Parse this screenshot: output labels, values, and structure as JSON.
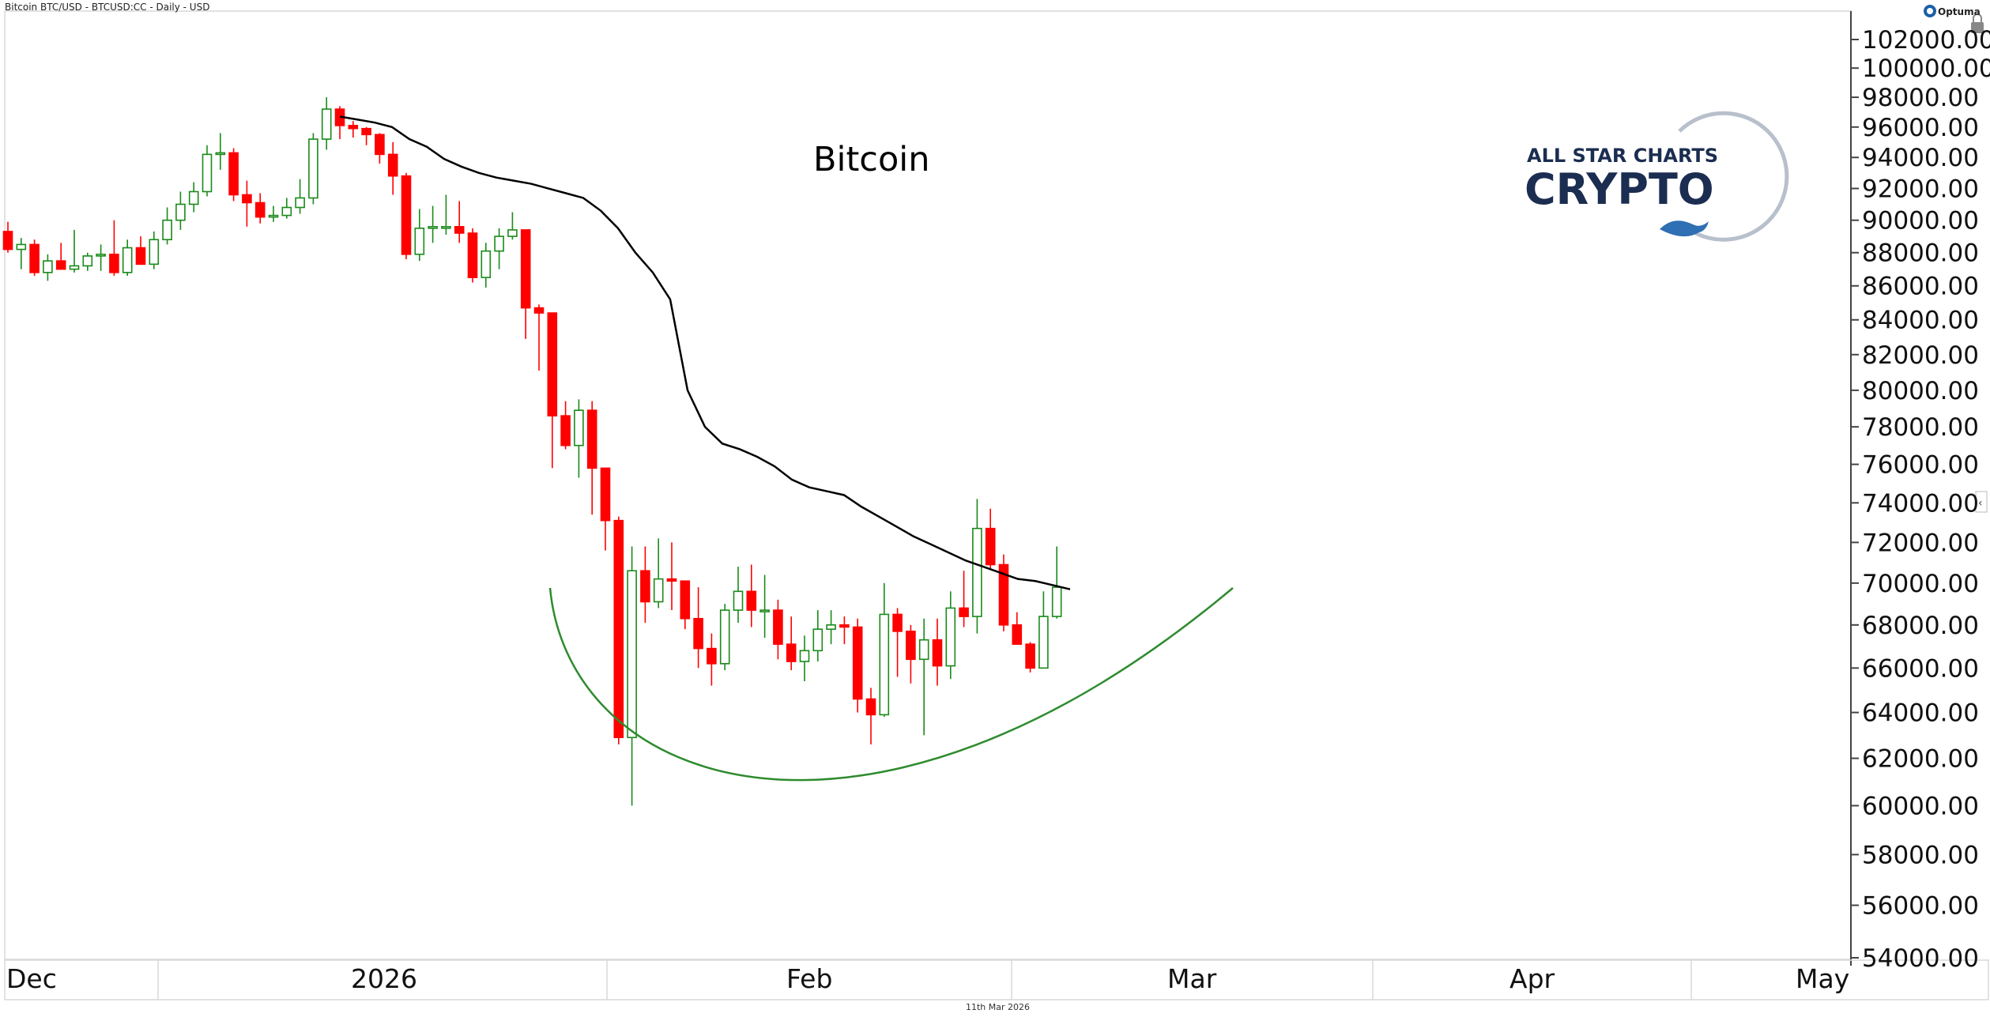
{
  "header": {
    "instrument": "Bitcoin BTC/USD - BTCUSD:CC - Daily - USD",
    "brand": "Optuma"
  },
  "footer": {
    "date": "11th Mar 2026"
  },
  "logo": {
    "line1": "ALL STAR CHARTS",
    "line2": "CRYPTO"
  },
  "colors": {
    "up": "#1a8a1a",
    "down": "#ff0000",
    "ma": "#000000",
    "arc": "#2e8b2e",
    "logo": "#1b2d50"
  },
  "chart_data": {
    "type": "candlestick",
    "title": "Bitcoin",
    "y_scale": "log",
    "ylim": [
      54000,
      102000
    ],
    "y_ticks": [
      "54000.00",
      "56000.00",
      "58000.00",
      "60000.00",
      "62000.00",
      "64000.00",
      "66000.00",
      "68000.00",
      "70000.00",
      "72000.00",
      "74000.00",
      "76000.00",
      "78000.00",
      "80000.00",
      "82000.00",
      "84000.00",
      "86000.00",
      "88000.00",
      "90000.00",
      "92000.00",
      "94000.00",
      "96000.00",
      "98000.00",
      "100000.00",
      "102000.00"
    ],
    "x_labels": [
      "Dec",
      "2026",
      "Feb",
      "Mar",
      "Apr",
      "May"
    ],
    "candles": [
      [
        89300,
        89900,
        88000,
        88200
      ],
      [
        88200,
        88900,
        87000,
        88500
      ],
      [
        88500,
        88800,
        86600,
        86800
      ],
      [
        86800,
        87900,
        86300,
        87500
      ],
      [
        87500,
        88600,
        87000,
        87000
      ],
      [
        87000,
        89400,
        86800,
        87200
      ],
      [
        87200,
        88000,
        86900,
        87800
      ],
      [
        87800,
        88500,
        86900,
        87900
      ],
      [
        87900,
        90000,
        86600,
        86800
      ],
      [
        86800,
        88800,
        86600,
        88300
      ],
      [
        88300,
        89000,
        87500,
        87300
      ],
      [
        87300,
        89300,
        87000,
        88800
      ],
      [
        88800,
        90800,
        88500,
        90000
      ],
      [
        90000,
        91800,
        89400,
        91000
      ],
      [
        91000,
        92400,
        90500,
        91800
      ],
      [
        91800,
        94800,
        91500,
        94200
      ],
      [
        94200,
        95600,
        93200,
        94300
      ],
      [
        94300,
        94600,
        91200,
        91600
      ],
      [
        91600,
        92500,
        89600,
        91100
      ],
      [
        91100,
        91700,
        89800,
        90200
      ],
      [
        90200,
        90900,
        89900,
        90300
      ],
      [
        90300,
        91400,
        90100,
        90800
      ],
      [
        90800,
        92600,
        90400,
        91400
      ],
      [
        91400,
        95600,
        91000,
        95200
      ],
      [
        95200,
        98000,
        94500,
        97200
      ],
      [
        97200,
        97400,
        95200,
        96100
      ],
      [
        96100,
        96400,
        95300,
        95900
      ],
      [
        95900,
        96000,
        94800,
        95500
      ],
      [
        95500,
        95600,
        93600,
        94200
      ],
      [
        94200,
        95000,
        91600,
        92800
      ],
      [
        92800,
        93000,
        87600,
        87900
      ],
      [
        87900,
        90700,
        87500,
        89500
      ],
      [
        89500,
        90900,
        88600,
        89600
      ],
      [
        89600,
        91600,
        89100,
        89600
      ],
      [
        89600,
        91200,
        88600,
        89200
      ],
      [
        89200,
        89500,
        86200,
        86500
      ],
      [
        86500,
        88600,
        85900,
        88100
      ],
      [
        88100,
        89500,
        87000,
        89000
      ],
      [
        89000,
        90500,
        88800,
        89400
      ],
      [
        89400,
        89400,
        82900,
        84700
      ],
      [
        84700,
        84900,
        81100,
        84400
      ],
      [
        84400,
        84400,
        75800,
        78600
      ],
      [
        78600,
        79400,
        76800,
        77000
      ],
      [
        77000,
        79500,
        75300,
        78900
      ],
      [
        78900,
        79400,
        73400,
        75800
      ],
      [
        75800,
        75800,
        71600,
        73100
      ],
      [
        73100,
        73300,
        62600,
        62900
      ],
      [
        62900,
        71800,
        60000,
        70600
      ],
      [
        70600,
        71800,
        68100,
        69100
      ],
      [
        69100,
        72200,
        68800,
        70200
      ],
      [
        70200,
        72000,
        68700,
        70100
      ],
      [
        70100,
        70100,
        67800,
        68300
      ],
      [
        68300,
        69800,
        66000,
        66900
      ],
      [
        66900,
        67600,
        65200,
        66200
      ],
      [
        66200,
        69000,
        65900,
        68700
      ],
      [
        68700,
        70800,
        68100,
        69600
      ],
      [
        69600,
        70900,
        67900,
        68700
      ],
      [
        68700,
        70400,
        67400,
        68700
      ],
      [
        68700,
        69200,
        66400,
        67100
      ],
      [
        67100,
        68400,
        65900,
        66300
      ],
      [
        66300,
        67500,
        65400,
        66800
      ],
      [
        66800,
        68700,
        66300,
        67800
      ],
      [
        67800,
        68700,
        67100,
        68000
      ],
      [
        68000,
        68400,
        67100,
        67900
      ],
      [
        67900,
        68300,
        64000,
        64600
      ],
      [
        64600,
        65100,
        62600,
        63900
      ],
      [
        63900,
        70000,
        63800,
        68500
      ],
      [
        68500,
        68800,
        65600,
        67700
      ],
      [
        67700,
        68000,
        65300,
        66400
      ],
      [
        66400,
        68300,
        63000,
        67300
      ],
      [
        67300,
        68300,
        65200,
        66100
      ],
      [
        66100,
        69600,
        65500,
        68800
      ],
      [
        68800,
        70600,
        67900,
        68400
      ],
      [
        68400,
        74200,
        67600,
        72700
      ],
      [
        72700,
        73700,
        70700,
        70900
      ],
      [
        70900,
        71400,
        67700,
        68000
      ],
      [
        68000,
        68600,
        67100,
        67100
      ],
      [
        67100,
        67200,
        65800,
        66000
      ],
      [
        66000,
        69600,
        66000,
        68400
      ],
      [
        68400,
        71800,
        68300,
        69800
      ]
    ],
    "moving_average": [
      96700,
      96500,
      96300,
      96000,
      95200,
      94700,
      93900,
      93400,
      93000,
      92700,
      92500,
      92300,
      92000,
      91700,
      91400,
      90600,
      89500,
      88000,
      86800,
      85200,
      80000,
      78000,
      77100,
      76800,
      76400,
      75900,
      75200,
      74800,
      74600,
      74400,
      73800,
      73300,
      72800,
      72300,
      71900,
      71500,
      71100,
      70800,
      70500,
      70200,
      70100,
      69900,
      69700
    ],
    "annotation": "rounded bottom arc"
  }
}
